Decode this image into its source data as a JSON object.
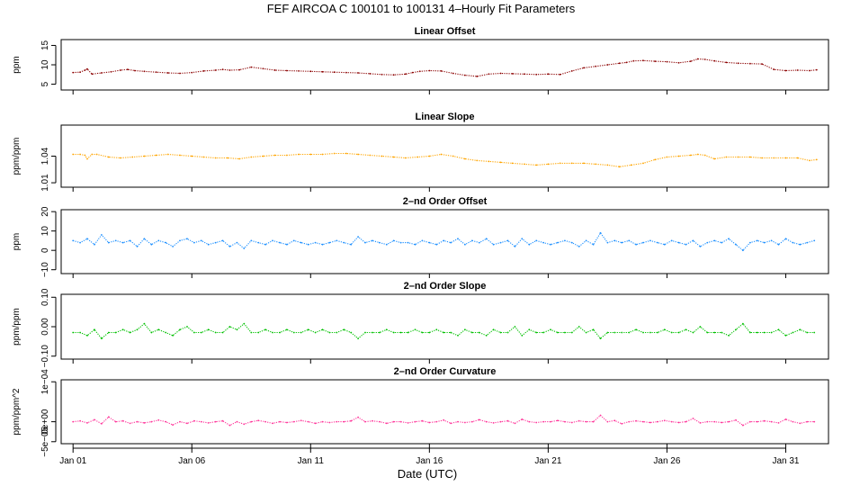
{
  "title": "FEF   AIRCOA C   100101 to 100131   4–Hourly Fit Parameters",
  "xlabel": "Date (UTC)",
  "chart_data": [
    {
      "type": "line",
      "title": "Linear Offset",
      "ylabel": "ppm",
      "color": "#8b0000",
      "ylim": [
        3.5,
        16.5
      ],
      "yticks": [
        {
          "value": 5,
          "label": "5"
        },
        {
          "value": 10,
          "label": "10"
        },
        {
          "value": 15,
          "label": "15"
        }
      ],
      "series": [
        {
          "name": "Linear Offset",
          "x": [
            0.0,
            0.3,
            0.5,
            0.6,
            0.8,
            1.2,
            1.6,
            2.0,
            2.3,
            2.6,
            3.0,
            3.5,
            4.0,
            4.5,
            5.0,
            5.5,
            6.0,
            6.3,
            6.6,
            7.0,
            7.5,
            8.0,
            8.5,
            9.0,
            9.5,
            10.0,
            10.5,
            11.0,
            11.5,
            12.0,
            12.5,
            13.0,
            13.5,
            14.0,
            14.3,
            14.6,
            15.0,
            15.5,
            16.0,
            16.5,
            17.0,
            17.5,
            18.0,
            18.5,
            19.0,
            19.5,
            20.0,
            20.5,
            21.0,
            21.5,
            22.0,
            22.5,
            23.0,
            23.3,
            23.6,
            24.0,
            24.5,
            25.0,
            25.5,
            26.0,
            26.3,
            26.6,
            27.0,
            27.5,
            28.0,
            28.5,
            29.0,
            29.5,
            30.0,
            30.5,
            31.0,
            31.3
          ],
          "values": [
            8.0,
            8.1,
            8.6,
            8.9,
            7.6,
            7.9,
            8.2,
            8.6,
            8.8,
            8.5,
            8.3,
            8.1,
            7.9,
            7.8,
            8.0,
            8.4,
            8.6,
            8.8,
            8.6,
            8.7,
            9.4,
            9.0,
            8.6,
            8.5,
            8.4,
            8.3,
            8.2,
            8.1,
            8.0,
            7.9,
            7.7,
            7.5,
            7.4,
            7.6,
            8.0,
            8.3,
            8.5,
            8.4,
            7.8,
            7.3,
            7.0,
            7.6,
            7.8,
            7.7,
            7.6,
            7.5,
            7.6,
            7.5,
            8.4,
            9.2,
            9.6,
            10.0,
            10.4,
            10.6,
            11.0,
            11.1,
            10.9,
            10.8,
            10.5,
            10.9,
            11.5,
            11.4,
            11.0,
            10.6,
            10.4,
            10.3,
            10.2,
            8.8,
            8.5,
            8.6,
            8.5,
            8.7
          ]
        }
      ]
    },
    {
      "type": "line",
      "title": "Linear Slope",
      "ylabel": "ppm/ppm",
      "color": "#ffa500",
      "ylim": [
        1.005,
        1.075
      ],
      "yticks": [
        {
          "value": 1.01,
          "label": "1.01"
        },
        {
          "value": 1.04,
          "label": "1.04"
        }
      ],
      "series": [
        {
          "name": "Linear Slope",
          "x": [
            0.0,
            0.3,
            0.5,
            0.6,
            0.8,
            1.0,
            1.5,
            2.0,
            2.5,
            3.0,
            3.5,
            4.0,
            4.5,
            5.0,
            5.5,
            6.0,
            6.5,
            7.0,
            7.5,
            8.0,
            8.5,
            9.0,
            9.5,
            10.0,
            10.5,
            11.0,
            11.5,
            12.0,
            12.5,
            13.0,
            13.5,
            14.0,
            14.5,
            15.0,
            15.5,
            16.0,
            16.5,
            17.0,
            17.5,
            18.0,
            18.5,
            19.0,
            19.5,
            20.0,
            20.5,
            21.0,
            21.5,
            22.0,
            22.5,
            23.0,
            23.5,
            24.0,
            24.5,
            25.0,
            25.5,
            26.0,
            26.3,
            26.6,
            27.0,
            27.5,
            28.0,
            28.5,
            29.0,
            29.5,
            30.0,
            30.5,
            31.0,
            31.3
          ],
          "values": [
            1.042,
            1.042,
            1.041,
            1.037,
            1.042,
            1.042,
            1.039,
            1.038,
            1.039,
            1.04,
            1.041,
            1.042,
            1.041,
            1.04,
            1.039,
            1.038,
            1.038,
            1.037,
            1.039,
            1.04,
            1.041,
            1.041,
            1.042,
            1.042,
            1.042,
            1.043,
            1.043,
            1.042,
            1.041,
            1.04,
            1.039,
            1.038,
            1.039,
            1.04,
            1.042,
            1.04,
            1.037,
            1.035,
            1.034,
            1.033,
            1.032,
            1.031,
            1.03,
            1.031,
            1.032,
            1.032,
            1.032,
            1.031,
            1.03,
            1.028,
            1.03,
            1.032,
            1.036,
            1.039,
            1.04,
            1.041,
            1.042,
            1.041,
            1.037,
            1.039,
            1.039,
            1.039,
            1.038,
            1.038,
            1.038,
            1.038,
            1.035,
            1.036
          ]
        }
      ]
    },
    {
      "type": "line",
      "title": "2–nd Order Offset",
      "ylabel": "ppm",
      "color": "#1e90ff",
      "ylim": [
        -12,
        21
      ],
      "yticks": [
        {
          "value": -10,
          "label": "−10"
        },
        {
          "value": 0,
          "label": "0"
        },
        {
          "value": 10,
          "label": "10"
        },
        {
          "value": 20,
          "label": "20"
        }
      ],
      "series": [
        {
          "name": "2–nd Order Offset",
          "x": [
            0.0,
            0.3,
            0.6,
            0.9,
            1.2,
            1.5,
            1.8,
            2.1,
            2.4,
            2.7,
            3.0,
            3.3,
            3.6,
            3.9,
            4.2,
            4.5,
            4.8,
            5.1,
            5.4,
            5.7,
            6.0,
            6.3,
            6.6,
            6.9,
            7.2,
            7.5,
            7.8,
            8.1,
            8.4,
            8.7,
            9.0,
            9.3,
            9.6,
            9.9,
            10.2,
            10.5,
            10.8,
            11.1,
            11.4,
            11.7,
            12.0,
            12.3,
            12.6,
            12.9,
            13.2,
            13.5,
            13.8,
            14.1,
            14.4,
            14.7,
            15.0,
            15.3,
            15.6,
            15.9,
            16.2,
            16.5,
            16.8,
            17.1,
            17.4,
            17.7,
            18.0,
            18.3,
            18.6,
            18.9,
            19.2,
            19.5,
            19.8,
            20.1,
            20.4,
            20.7,
            21.0,
            21.3,
            21.6,
            21.9,
            22.2,
            22.5,
            22.8,
            23.1,
            23.4,
            23.7,
            24.0,
            24.3,
            24.6,
            24.9,
            25.2,
            25.5,
            25.8,
            26.1,
            26.4,
            26.7,
            27.0,
            27.3,
            27.6,
            27.9,
            28.2,
            28.5,
            28.8,
            29.1,
            29.4,
            29.7,
            30.0,
            30.3,
            30.6,
            30.9,
            31.2
          ],
          "values": [
            5,
            4,
            6,
            3,
            8,
            4,
            5,
            4,
            5,
            2,
            6,
            3,
            5,
            4,
            2,
            5,
            6,
            4,
            5,
            3,
            4,
            5,
            2,
            4,
            1,
            5,
            4,
            3,
            5,
            4,
            3,
            5,
            4,
            3,
            4,
            3,
            4,
            5,
            4,
            3,
            7,
            4,
            5,
            4,
            3,
            5,
            4,
            4,
            3,
            5,
            4,
            3,
            5,
            4,
            6,
            3,
            5,
            4,
            6,
            3,
            4,
            5,
            2,
            6,
            3,
            5,
            4,
            3,
            4,
            5,
            4,
            2,
            5,
            3,
            9,
            4,
            5,
            4,
            5,
            3,
            4,
            5,
            4,
            3,
            5,
            4,
            3,
            5,
            2,
            4,
            5,
            4,
            6,
            3,
            0,
            4,
            5,
            4,
            5,
            3,
            6,
            4,
            3,
            4,
            5
          ]
        }
      ]
    },
    {
      "type": "line",
      "title": "2–nd Order Slope",
      "ylabel": "ppm/ppm",
      "color": "#00c000",
      "ylim": [
        -0.11,
        0.11
      ],
      "yticks": [
        {
          "value": -0.1,
          "label": "−0.10"
        },
        {
          "value": 0.0,
          "label": "0.00"
        },
        {
          "value": 0.1,
          "label": "0.10"
        }
      ],
      "series": [
        {
          "name": "2–nd Order Slope",
          "x": [
            0.0,
            0.3,
            0.6,
            0.9,
            1.2,
            1.5,
            1.8,
            2.1,
            2.4,
            2.7,
            3.0,
            3.3,
            3.6,
            3.9,
            4.2,
            4.5,
            4.8,
            5.1,
            5.4,
            5.7,
            6.0,
            6.3,
            6.6,
            6.9,
            7.2,
            7.5,
            7.8,
            8.1,
            8.4,
            8.7,
            9.0,
            9.3,
            9.6,
            9.9,
            10.2,
            10.5,
            10.8,
            11.1,
            11.4,
            11.7,
            12.0,
            12.3,
            12.6,
            12.9,
            13.2,
            13.5,
            13.8,
            14.1,
            14.4,
            14.7,
            15.0,
            15.3,
            15.6,
            15.9,
            16.2,
            16.5,
            16.8,
            17.1,
            17.4,
            17.7,
            18.0,
            18.3,
            18.6,
            18.9,
            19.2,
            19.5,
            19.8,
            20.1,
            20.4,
            20.7,
            21.0,
            21.3,
            21.6,
            21.9,
            22.2,
            22.5,
            22.8,
            23.1,
            23.4,
            23.7,
            24.0,
            24.3,
            24.6,
            24.9,
            25.2,
            25.5,
            25.8,
            26.1,
            26.4,
            26.7,
            27.0,
            27.3,
            27.6,
            27.9,
            28.2,
            28.5,
            28.8,
            29.1,
            29.4,
            29.7,
            30.0,
            30.3,
            30.6,
            30.9,
            31.2
          ],
          "values": [
            -0.02,
            -0.02,
            -0.03,
            -0.01,
            -0.04,
            -0.02,
            -0.02,
            -0.01,
            -0.02,
            -0.01,
            0.01,
            -0.02,
            -0.01,
            -0.02,
            -0.03,
            -0.01,
            0.0,
            -0.02,
            -0.02,
            -0.01,
            -0.02,
            -0.02,
            0.0,
            -0.01,
            0.01,
            -0.02,
            -0.02,
            -0.01,
            -0.02,
            -0.02,
            -0.01,
            -0.02,
            -0.02,
            -0.01,
            -0.02,
            -0.01,
            -0.02,
            -0.02,
            -0.01,
            -0.02,
            -0.04,
            -0.02,
            -0.02,
            -0.02,
            -0.01,
            -0.02,
            -0.02,
            -0.02,
            -0.01,
            -0.02,
            -0.02,
            -0.01,
            -0.02,
            -0.02,
            -0.03,
            -0.01,
            -0.02,
            -0.02,
            -0.03,
            -0.01,
            -0.02,
            -0.02,
            0.0,
            -0.03,
            -0.01,
            -0.02,
            -0.02,
            -0.01,
            -0.02,
            -0.02,
            -0.02,
            0.0,
            -0.02,
            -0.01,
            -0.04,
            -0.02,
            -0.02,
            -0.02,
            -0.02,
            -0.01,
            -0.02,
            -0.02,
            -0.02,
            -0.01,
            -0.02,
            -0.02,
            -0.01,
            -0.02,
            0.0,
            -0.02,
            -0.02,
            -0.02,
            -0.03,
            -0.01,
            0.01,
            -0.02,
            -0.02,
            -0.02,
            -0.02,
            -0.01,
            -0.03,
            -0.02,
            -0.01,
            -0.02,
            -0.02
          ]
        }
      ]
    },
    {
      "type": "line",
      "title": "2–nd Order Curvature",
      "ylabel": "ppm/ppm^2",
      "color": "#ff3399",
      "ylim": [
        -5.5e-05,
        0.000105
      ],
      "yticks": [
        {
          "value": -5e-05,
          "label": "−5e−05"
        },
        {
          "value": 0.0,
          "label": "0e+00"
        },
        {
          "value": 0.0001,
          "label": "1e−04"
        }
      ],
      "series": [
        {
          "name": "2–nd Order Curvature",
          "x": [
            0.0,
            0.3,
            0.6,
            0.9,
            1.2,
            1.5,
            1.8,
            2.1,
            2.4,
            2.7,
            3.0,
            3.3,
            3.6,
            3.9,
            4.2,
            4.5,
            4.8,
            5.1,
            5.4,
            5.7,
            6.0,
            6.3,
            6.6,
            6.9,
            7.2,
            7.5,
            7.8,
            8.1,
            8.4,
            8.7,
            9.0,
            9.3,
            9.6,
            9.9,
            10.2,
            10.5,
            10.8,
            11.1,
            11.4,
            11.7,
            12.0,
            12.3,
            12.6,
            12.9,
            13.2,
            13.5,
            13.8,
            14.1,
            14.4,
            14.7,
            15.0,
            15.3,
            15.6,
            15.9,
            16.2,
            16.5,
            16.8,
            17.1,
            17.4,
            17.7,
            18.0,
            18.3,
            18.6,
            18.9,
            19.2,
            19.5,
            19.8,
            20.1,
            20.4,
            20.7,
            21.0,
            21.3,
            21.6,
            21.9,
            22.2,
            22.5,
            22.8,
            23.1,
            23.4,
            23.7,
            24.0,
            24.3,
            24.6,
            24.9,
            25.2,
            25.5,
            25.8,
            26.1,
            26.4,
            26.7,
            27.0,
            27.3,
            27.6,
            27.9,
            28.2,
            28.5,
            28.8,
            29.1,
            29.4,
            29.7,
            30.0,
            30.3,
            30.6,
            30.9,
            31.2
          ],
          "values": [
            0.0,
            2e-06,
            -3e-06,
            5e-06,
            -5e-06,
            1.2e-05,
            0.0,
            2e-06,
            -4e-06,
            0.0,
            -3e-06,
            0.0,
            4e-06,
            0.0,
            -8e-06,
            0.0,
            -4e-06,
            2e-06,
            0.0,
            -3e-06,
            0.0,
            2e-06,
            -9e-06,
            0.0,
            -6e-06,
            0.0,
            3e-06,
            0.0,
            -4e-06,
            0.0,
            -2e-06,
            0.0,
            3e-06,
            0.0,
            -4e-06,
            0.0,
            -2e-06,
            0.0,
            0.0,
            2e-06,
            1.1e-05,
            0.0,
            2e-06,
            0.0,
            -4e-06,
            0.0,
            0.0,
            -3e-06,
            0.0,
            2e-06,
            -2e-06,
            0.0,
            4e-06,
            -4e-06,
            0.0,
            -2e-06,
            0.0,
            5e-06,
            0.0,
            -3e-06,
            0.0,
            2e-06,
            -4e-06,
            6e-06,
            0.0,
            -2e-06,
            0.0,
            0.0,
            3e-06,
            0.0,
            -2e-06,
            2e-06,
            0.0,
            0.0,
            1.6e-05,
            0.0,
            3e-06,
            -5e-06,
            0.0,
            2e-06,
            0.0,
            -2e-06,
            0.0,
            3e-06,
            0.0,
            -2e-06,
            0.0,
            8e-06,
            -3e-06,
            0.0,
            0.0,
            -2e-06,
            0.0,
            4e-06,
            -9e-06,
            0.0,
            0.0,
            2e-06,
            0.0,
            -3e-06,
            6e-06,
            0.0,
            -4e-06,
            0.0,
            0.0
          ]
        }
      ]
    }
  ],
  "xaxis": {
    "xlim": [
      -0.5,
      31.8
    ],
    "ticks": [
      {
        "value": 0,
        "label": "Jan 01"
      },
      {
        "value": 5,
        "label": "Jan 06"
      },
      {
        "value": 10,
        "label": "Jan 11"
      },
      {
        "value": 15,
        "label": "Jan 16"
      },
      {
        "value": 20,
        "label": "Jan 21"
      },
      {
        "value": 25,
        "label": "Jan 26"
      },
      {
        "value": 30,
        "label": "Jan 31"
      }
    ]
  }
}
